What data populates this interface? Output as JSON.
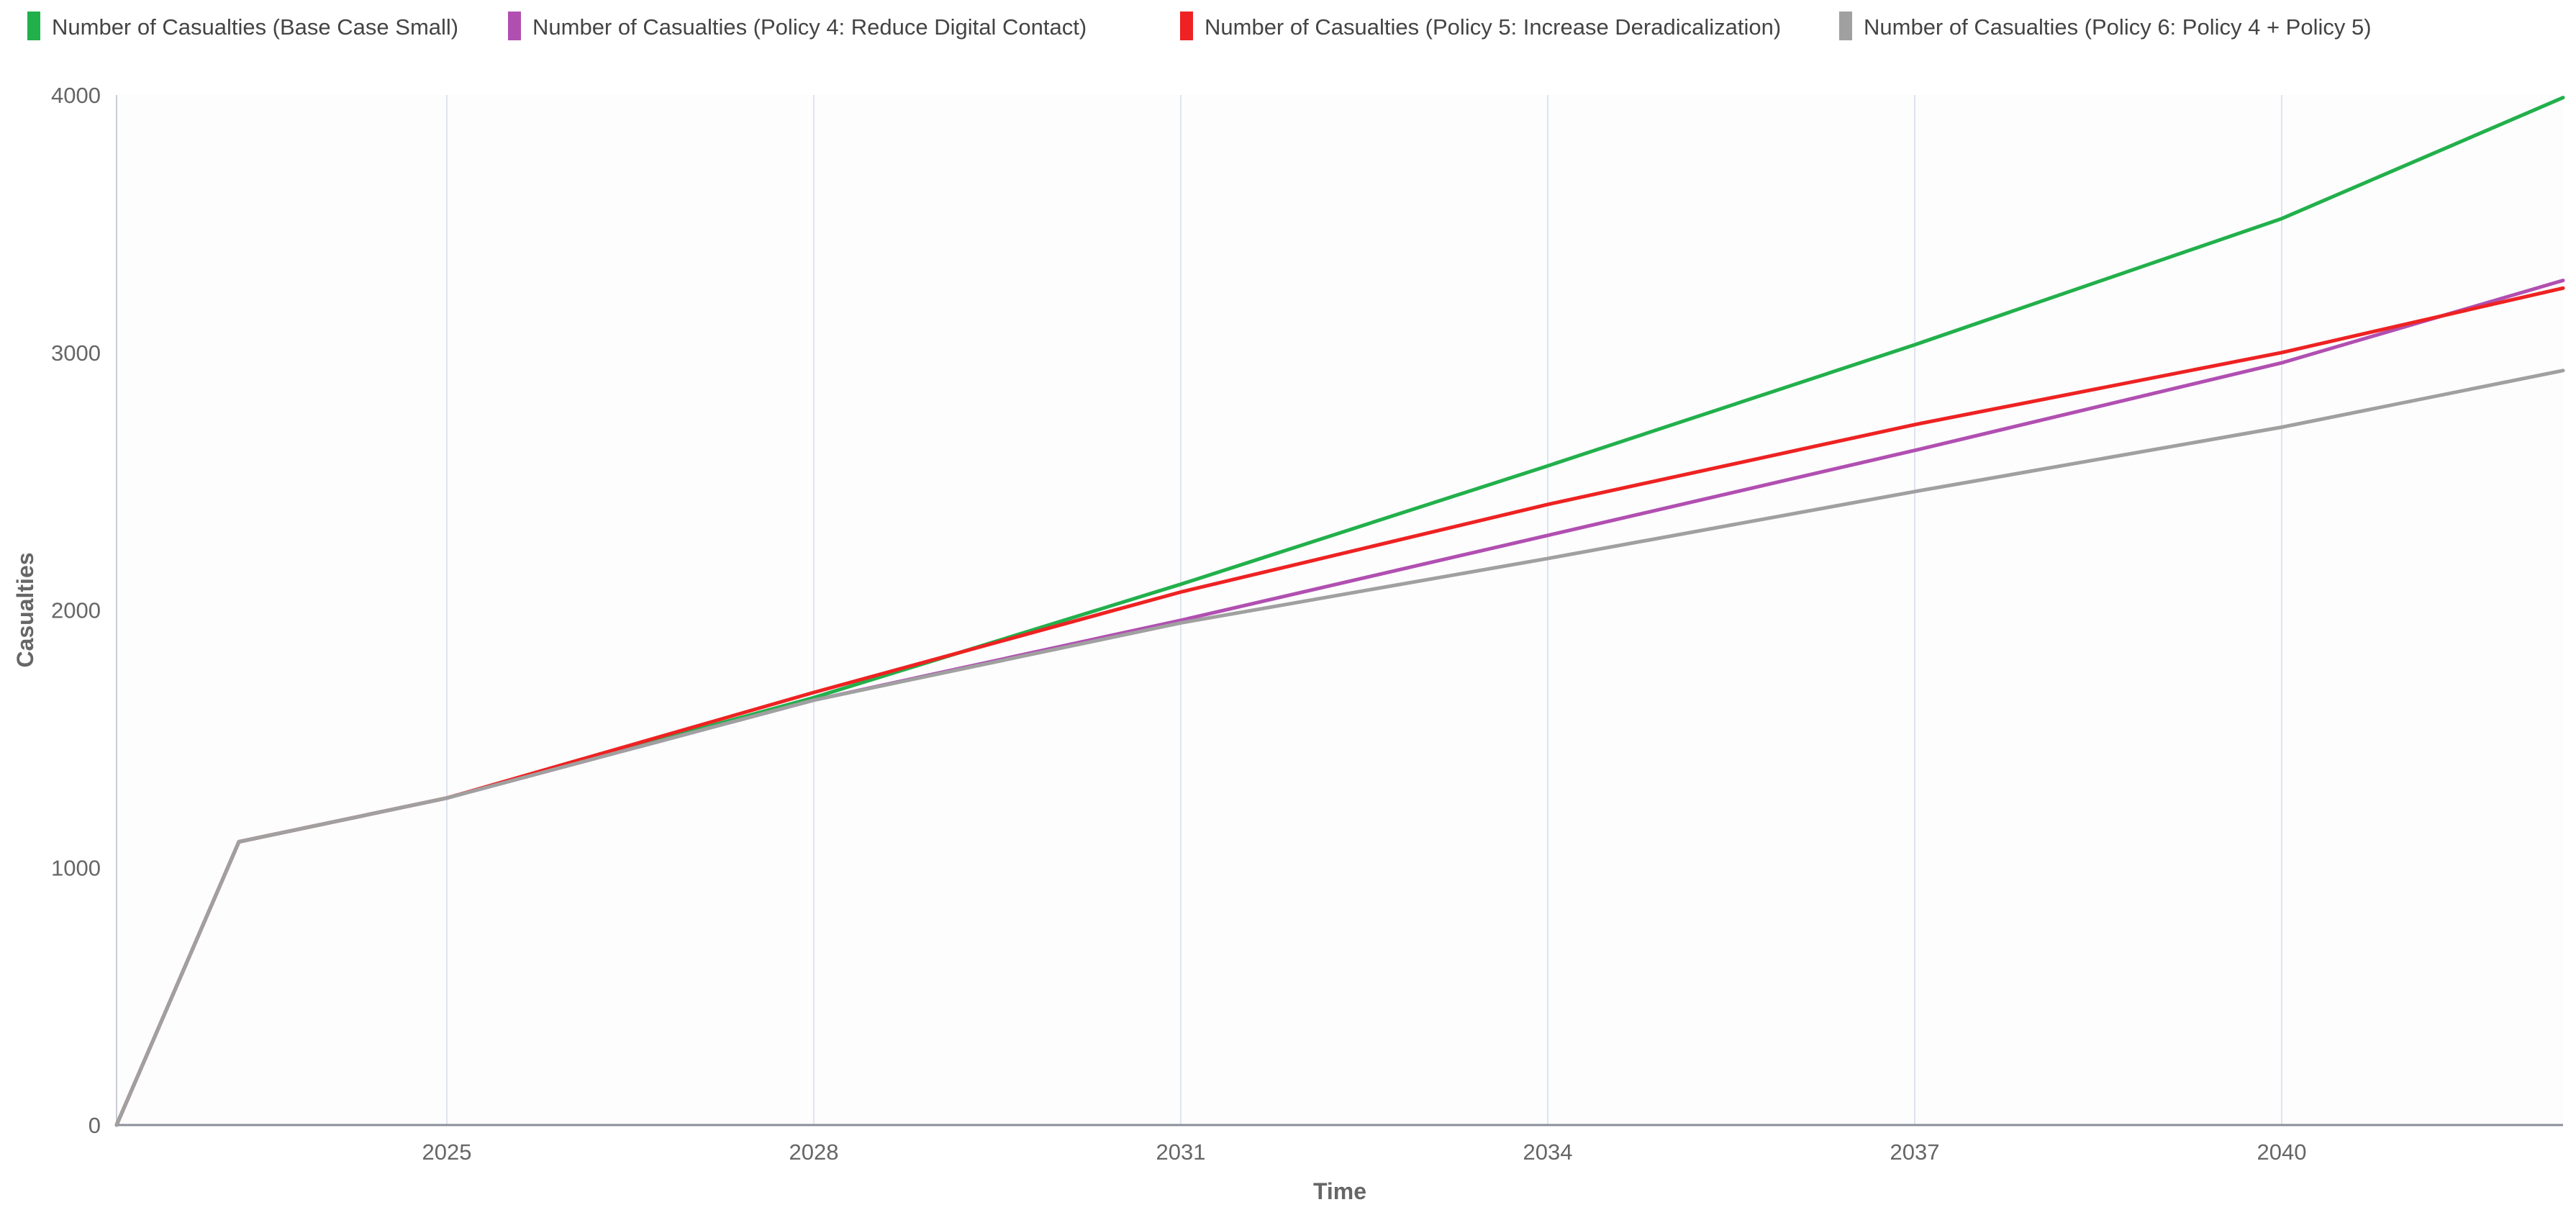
{
  "chart_data": {
    "type": "line",
    "title": "",
    "xlabel": "Time",
    "ylabel": "Casualties",
    "xlim": [
      2022.3,
      2042.3
    ],
    "ylim": [
      0,
      4000
    ],
    "x_ticks": [
      2025,
      2028,
      2031,
      2034,
      2037,
      2040
    ],
    "y_ticks": [
      0,
      1000,
      2000,
      3000,
      4000
    ],
    "grid": "vertical",
    "legend_position": "top",
    "x": [
      2022.3,
      2023.3,
      2025,
      2028,
      2031,
      2034,
      2037,
      2040,
      2042.3
    ],
    "series": [
      {
        "name": "Number of Casualties (Base Case Small)",
        "color": "#22b04b",
        "values": [
          0,
          1100,
          1270,
          1660,
          2100,
          2560,
          3030,
          3520,
          3990
        ]
      },
      {
        "name": "Number of Casualties (Policy 4: Reduce Digital Contact)",
        "color": "#b14fb1",
        "values": [
          0,
          1100,
          1270,
          1650,
          1960,
          2290,
          2620,
          2960,
          3280
        ]
      },
      {
        "name": "Number of Casualties (Policy 5: Increase Deradicalization)",
        "color": "#ee2222",
        "values": [
          0,
          1100,
          1270,
          1680,
          2070,
          2410,
          2720,
          3000,
          3250
        ]
      },
      {
        "name": "Number of Casualties (Policy 6: Policy 4 + Policy 5)",
        "color": "#a0a0a0",
        "values": [
          0,
          1100,
          1270,
          1650,
          1950,
          2200,
          2460,
          2710,
          2930
        ]
      }
    ]
  }
}
